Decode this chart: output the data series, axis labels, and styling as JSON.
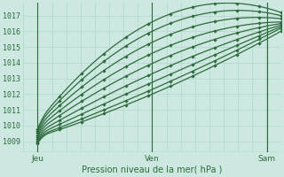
{
  "xlabel": "Pression niveau de la mer( hPa )",
  "xlim": [
    0,
    1.0
  ],
  "ylim": [
    1008.3,
    1017.8
  ],
  "yticks": [
    1009,
    1010,
    1011,
    1012,
    1013,
    1014,
    1015,
    1016,
    1017
  ],
  "xtick_labels": [
    "Jeu",
    "Ven",
    "Sam"
  ],
  "xtick_positions": [
    0.055,
    0.5,
    0.945
  ],
  "background_color": "#cce8e0",
  "grid_color": "#b8d8d0",
  "line_color": "#2d6b3c",
  "n_lines": 9,
  "line_width": 0.9,
  "figsize": [
    3.2,
    2.0
  ],
  "dpi": 100
}
